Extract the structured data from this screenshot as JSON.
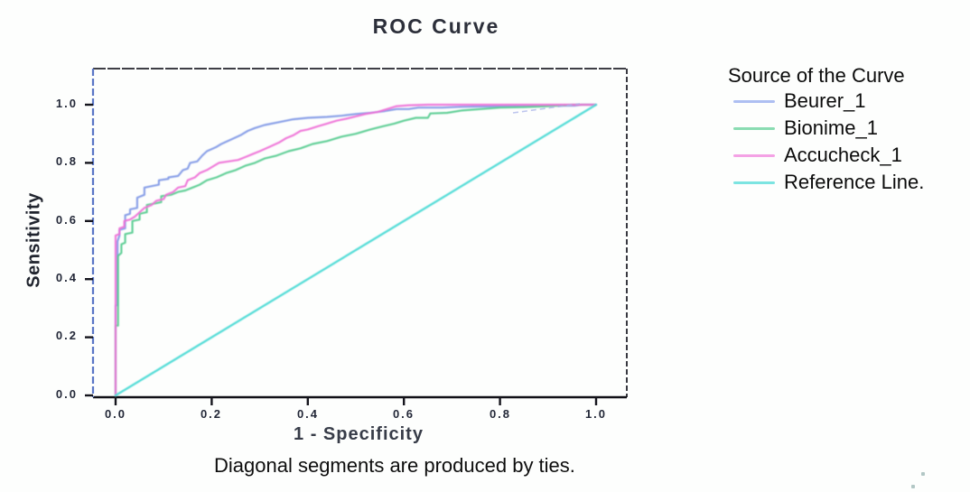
{
  "title": "ROC Curve",
  "caption": "Diagonal segments are produced by ties.",
  "legend": {
    "title": "Source of the Curve",
    "items": [
      {
        "label": "Beurer_1",
        "color": "#8ca4ec"
      },
      {
        "label": "Bionime_1",
        "color": "#58cd92"
      },
      {
        "label": "Accucheck_1",
        "color": "#f07ada"
      },
      {
        "label": "Reference Line.",
        "color": "#45d9d4"
      }
    ]
  },
  "chart_data": {
    "type": "line",
    "title": "ROC Curve",
    "xlabel": "1 - Specificity",
    "ylabel": "Sensitivity",
    "xlim": [
      0,
      1
    ],
    "ylim": [
      0,
      1
    ],
    "x_ticks": [
      "0.0",
      "0.2",
      "0.4",
      "0.6",
      "0.8",
      "1.0"
    ],
    "y_ticks": [
      "0.0",
      "0.2",
      "0.4",
      "0.6",
      "0.8",
      "1.0"
    ],
    "grid": false,
    "legend_position": "right-outside",
    "note": "ROC curves; all curves rise steeply near x=0 to sensitivity ~0.5",
    "series": [
      {
        "name": "Beurer_1",
        "color": "#7e97e6",
        "points": [
          [
            0,
            0
          ],
          [
            0,
            0.31
          ],
          [
            0.004,
            0.31
          ],
          [
            0.004,
            0.53
          ],
          [
            0.008,
            0.55
          ],
          [
            0.008,
            0.57
          ],
          [
            0.02,
            0.575
          ],
          [
            0.02,
            0.62
          ],
          [
            0.03,
            0.625
          ],
          [
            0.03,
            0.64
          ],
          [
            0.045,
            0.645
          ],
          [
            0.045,
            0.68
          ],
          [
            0.06,
            0.69
          ],
          [
            0.06,
            0.715
          ],
          [
            0.075,
            0.72
          ],
          [
            0.09,
            0.725
          ],
          [
            0.09,
            0.74
          ],
          [
            0.11,
            0.745
          ],
          [
            0.11,
            0.75
          ],
          [
            0.13,
            0.755
          ],
          [
            0.14,
            0.775
          ],
          [
            0.15,
            0.78
          ],
          [
            0.155,
            0.8
          ],
          [
            0.17,
            0.805
          ],
          [
            0.18,
            0.825
          ],
          [
            0.19,
            0.84
          ],
          [
            0.21,
            0.855
          ],
          [
            0.22,
            0.865
          ],
          [
            0.24,
            0.88
          ],
          [
            0.26,
            0.895
          ],
          [
            0.275,
            0.91
          ],
          [
            0.29,
            0.92
          ],
          [
            0.31,
            0.93
          ],
          [
            0.34,
            0.94
          ],
          [
            0.37,
            0.95
          ],
          [
            0.4,
            0.955
          ],
          [
            0.44,
            0.958
          ],
          [
            0.47,
            0.962
          ],
          [
            0.5,
            0.968
          ],
          [
            0.53,
            0.972
          ],
          [
            0.56,
            0.978
          ],
          [
            0.585,
            0.985
          ],
          [
            0.61,
            0.985
          ],
          [
            0.63,
            0.99
          ],
          [
            0.68,
            0.99
          ],
          [
            0.72,
            0.993
          ],
          [
            0.8,
            0.995
          ],
          [
            0.9,
            0.997
          ],
          [
            0.955,
            0.997
          ],
          [
            0.97,
            1
          ],
          [
            1,
            1
          ]
        ]
      },
      {
        "name": "Bionime_1",
        "color": "#53cb8e",
        "points": [
          [
            0,
            0
          ],
          [
            0,
            0.24
          ],
          [
            0.005,
            0.24
          ],
          [
            0.005,
            0.48
          ],
          [
            0.012,
            0.49
          ],
          [
            0.012,
            0.52
          ],
          [
            0.02,
            0.525
          ],
          [
            0.02,
            0.555
          ],
          [
            0.035,
            0.56
          ],
          [
            0.035,
            0.6
          ],
          [
            0.05,
            0.605
          ],
          [
            0.05,
            0.625
          ],
          [
            0.065,
            0.63
          ],
          [
            0.065,
            0.655
          ],
          [
            0.08,
            0.66
          ],
          [
            0.095,
            0.665
          ],
          [
            0.095,
            0.685
          ],
          [
            0.115,
            0.69
          ],
          [
            0.13,
            0.7
          ],
          [
            0.145,
            0.705
          ],
          [
            0.16,
            0.715
          ],
          [
            0.175,
            0.725
          ],
          [
            0.19,
            0.74
          ],
          [
            0.21,
            0.75
          ],
          [
            0.23,
            0.765
          ],
          [
            0.25,
            0.775
          ],
          [
            0.27,
            0.79
          ],
          [
            0.29,
            0.8
          ],
          [
            0.31,
            0.815
          ],
          [
            0.335,
            0.825
          ],
          [
            0.36,
            0.84
          ],
          [
            0.385,
            0.85
          ],
          [
            0.41,
            0.865
          ],
          [
            0.44,
            0.875
          ],
          [
            0.47,
            0.89
          ],
          [
            0.5,
            0.9
          ],
          [
            0.53,
            0.915
          ],
          [
            0.555,
            0.925
          ],
          [
            0.58,
            0.935
          ],
          [
            0.6,
            0.945
          ],
          [
            0.625,
            0.955
          ],
          [
            0.65,
            0.955
          ],
          [
            0.655,
            0.97
          ],
          [
            0.69,
            0.972
          ],
          [
            0.72,
            0.98
          ],
          [
            0.76,
            0.985
          ],
          [
            0.8,
            0.99
          ],
          [
            0.85,
            0.992
          ],
          [
            0.9,
            0.995
          ],
          [
            0.95,
            1
          ],
          [
            1,
            1
          ]
        ]
      },
      {
        "name": "Accucheck_1",
        "color": "#ee6ed6",
        "points": [
          [
            0,
            0
          ],
          [
            0,
            0.55
          ],
          [
            0.008,
            0.555
          ],
          [
            0.008,
            0.575
          ],
          [
            0.018,
            0.58
          ],
          [
            0.018,
            0.6
          ],
          [
            0.03,
            0.605
          ],
          [
            0.04,
            0.615
          ],
          [
            0.05,
            0.63
          ],
          [
            0.06,
            0.645
          ],
          [
            0.075,
            0.655
          ],
          [
            0.085,
            0.67
          ],
          [
            0.1,
            0.675
          ],
          [
            0.105,
            0.69
          ],
          [
            0.12,
            0.7
          ],
          [
            0.13,
            0.715
          ],
          [
            0.145,
            0.72
          ],
          [
            0.15,
            0.74
          ],
          [
            0.165,
            0.75
          ],
          [
            0.175,
            0.765
          ],
          [
            0.19,
            0.775
          ],
          [
            0.205,
            0.79
          ],
          [
            0.215,
            0.8
          ],
          [
            0.235,
            0.805
          ],
          [
            0.255,
            0.81
          ],
          [
            0.27,
            0.82
          ],
          [
            0.285,
            0.83
          ],
          [
            0.3,
            0.84
          ],
          [
            0.32,
            0.855
          ],
          [
            0.34,
            0.87
          ],
          [
            0.355,
            0.885
          ],
          [
            0.37,
            0.895
          ],
          [
            0.385,
            0.91
          ],
          [
            0.4,
            0.915
          ],
          [
            0.42,
            0.925
          ],
          [
            0.44,
            0.935
          ],
          [
            0.46,
            0.945
          ],
          [
            0.48,
            0.952
          ],
          [
            0.5,
            0.96
          ],
          [
            0.52,
            0.968
          ],
          [
            0.545,
            0.975
          ],
          [
            0.565,
            0.985
          ],
          [
            0.585,
            0.995
          ],
          [
            0.61,
            0.998
          ],
          [
            0.65,
            1
          ],
          [
            1,
            1
          ]
        ]
      },
      {
        "name": "Reference Line.",
        "color": "#45d9d4",
        "width": 2.4,
        "points": [
          [
            0,
            0
          ],
          [
            1,
            1
          ]
        ]
      }
    ]
  }
}
